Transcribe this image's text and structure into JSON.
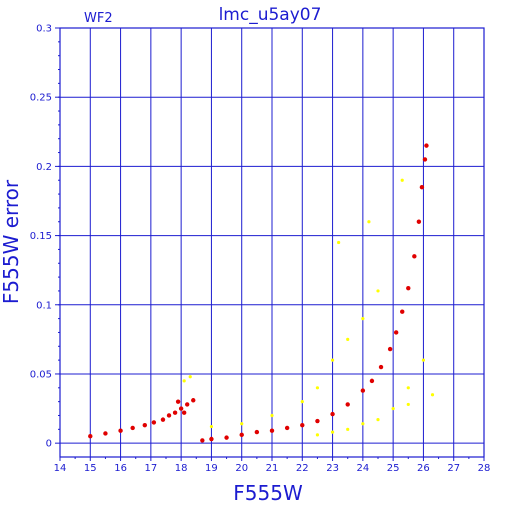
{
  "chart_data": {
    "type": "scatter",
    "title": "lmc_u5ay07",
    "annotation": "WF2",
    "xlabel": "F555W",
    "ylabel": "F555W error",
    "xlim": [
      14,
      28
    ],
    "ylim": [
      -0.01,
      0.3
    ],
    "x_ticks": [
      "14",
      "15",
      "16",
      "17",
      "18",
      "19",
      "20",
      "21",
      "22",
      "23",
      "24",
      "25",
      "26",
      "27",
      "28"
    ],
    "y_ticks": [
      "0",
      "0.05",
      "0.1",
      "0.15",
      "0.2",
      "0.25",
      "0.3"
    ],
    "grid": true,
    "colors": {
      "axis": "#1c1cd0",
      "grid": "#1c1cd0",
      "series_primary": "#e00000",
      "series_secondary": "#ffff00"
    },
    "series": [
      {
        "color": "#e00000",
        "description": "dense main sequence of stars",
        "points": [
          [
            15.0,
            0.005
          ],
          [
            15.5,
            0.007
          ],
          [
            16.0,
            0.009
          ],
          [
            16.4,
            0.011
          ],
          [
            16.8,
            0.013
          ],
          [
            17.1,
            0.015
          ],
          [
            17.4,
            0.017
          ],
          [
            17.6,
            0.02
          ],
          [
            17.8,
            0.022
          ],
          [
            18.0,
            0.025
          ],
          [
            18.2,
            0.028
          ],
          [
            18.4,
            0.031
          ],
          [
            17.9,
            0.03
          ],
          [
            18.1,
            0.022
          ],
          [
            18.7,
            0.002
          ],
          [
            19.0,
            0.003
          ],
          [
            19.5,
            0.004
          ],
          [
            20.0,
            0.006
          ],
          [
            20.5,
            0.008
          ],
          [
            21.0,
            0.009
          ],
          [
            21.5,
            0.011
          ],
          [
            22.0,
            0.013
          ],
          [
            22.5,
            0.016
          ],
          [
            23.0,
            0.021
          ],
          [
            23.5,
            0.028
          ],
          [
            24.0,
            0.038
          ],
          [
            24.3,
            0.045
          ],
          [
            24.6,
            0.055
          ],
          [
            24.9,
            0.068
          ],
          [
            25.1,
            0.08
          ],
          [
            25.3,
            0.095
          ],
          [
            25.5,
            0.112
          ],
          [
            25.7,
            0.135
          ],
          [
            25.85,
            0.16
          ],
          [
            25.95,
            0.185
          ],
          [
            26.05,
            0.205
          ],
          [
            26.1,
            0.215
          ]
        ]
      },
      {
        "color": "#ffff00",
        "description": "scattered secondary population",
        "points": [
          [
            18.1,
            0.045
          ],
          [
            18.3,
            0.048
          ],
          [
            19.0,
            0.012
          ],
          [
            20.0,
            0.014
          ],
          [
            21.0,
            0.02
          ],
          [
            22.0,
            0.03
          ],
          [
            22.5,
            0.04
          ],
          [
            23.0,
            0.06
          ],
          [
            23.5,
            0.075
          ],
          [
            24.0,
            0.09
          ],
          [
            24.5,
            0.11
          ],
          [
            23.2,
            0.145
          ],
          [
            24.2,
            0.16
          ],
          [
            25.3,
            0.19
          ],
          [
            22.5,
            0.006
          ],
          [
            23.5,
            0.01
          ],
          [
            24.5,
            0.017
          ],
          [
            25.0,
            0.025
          ],
          [
            25.5,
            0.04
          ],
          [
            26.0,
            0.06
          ],
          [
            26.3,
            0.035
          ],
          [
            25.5,
            0.028
          ],
          [
            24.0,
            0.014
          ],
          [
            23.0,
            0.008
          ]
        ]
      }
    ]
  }
}
